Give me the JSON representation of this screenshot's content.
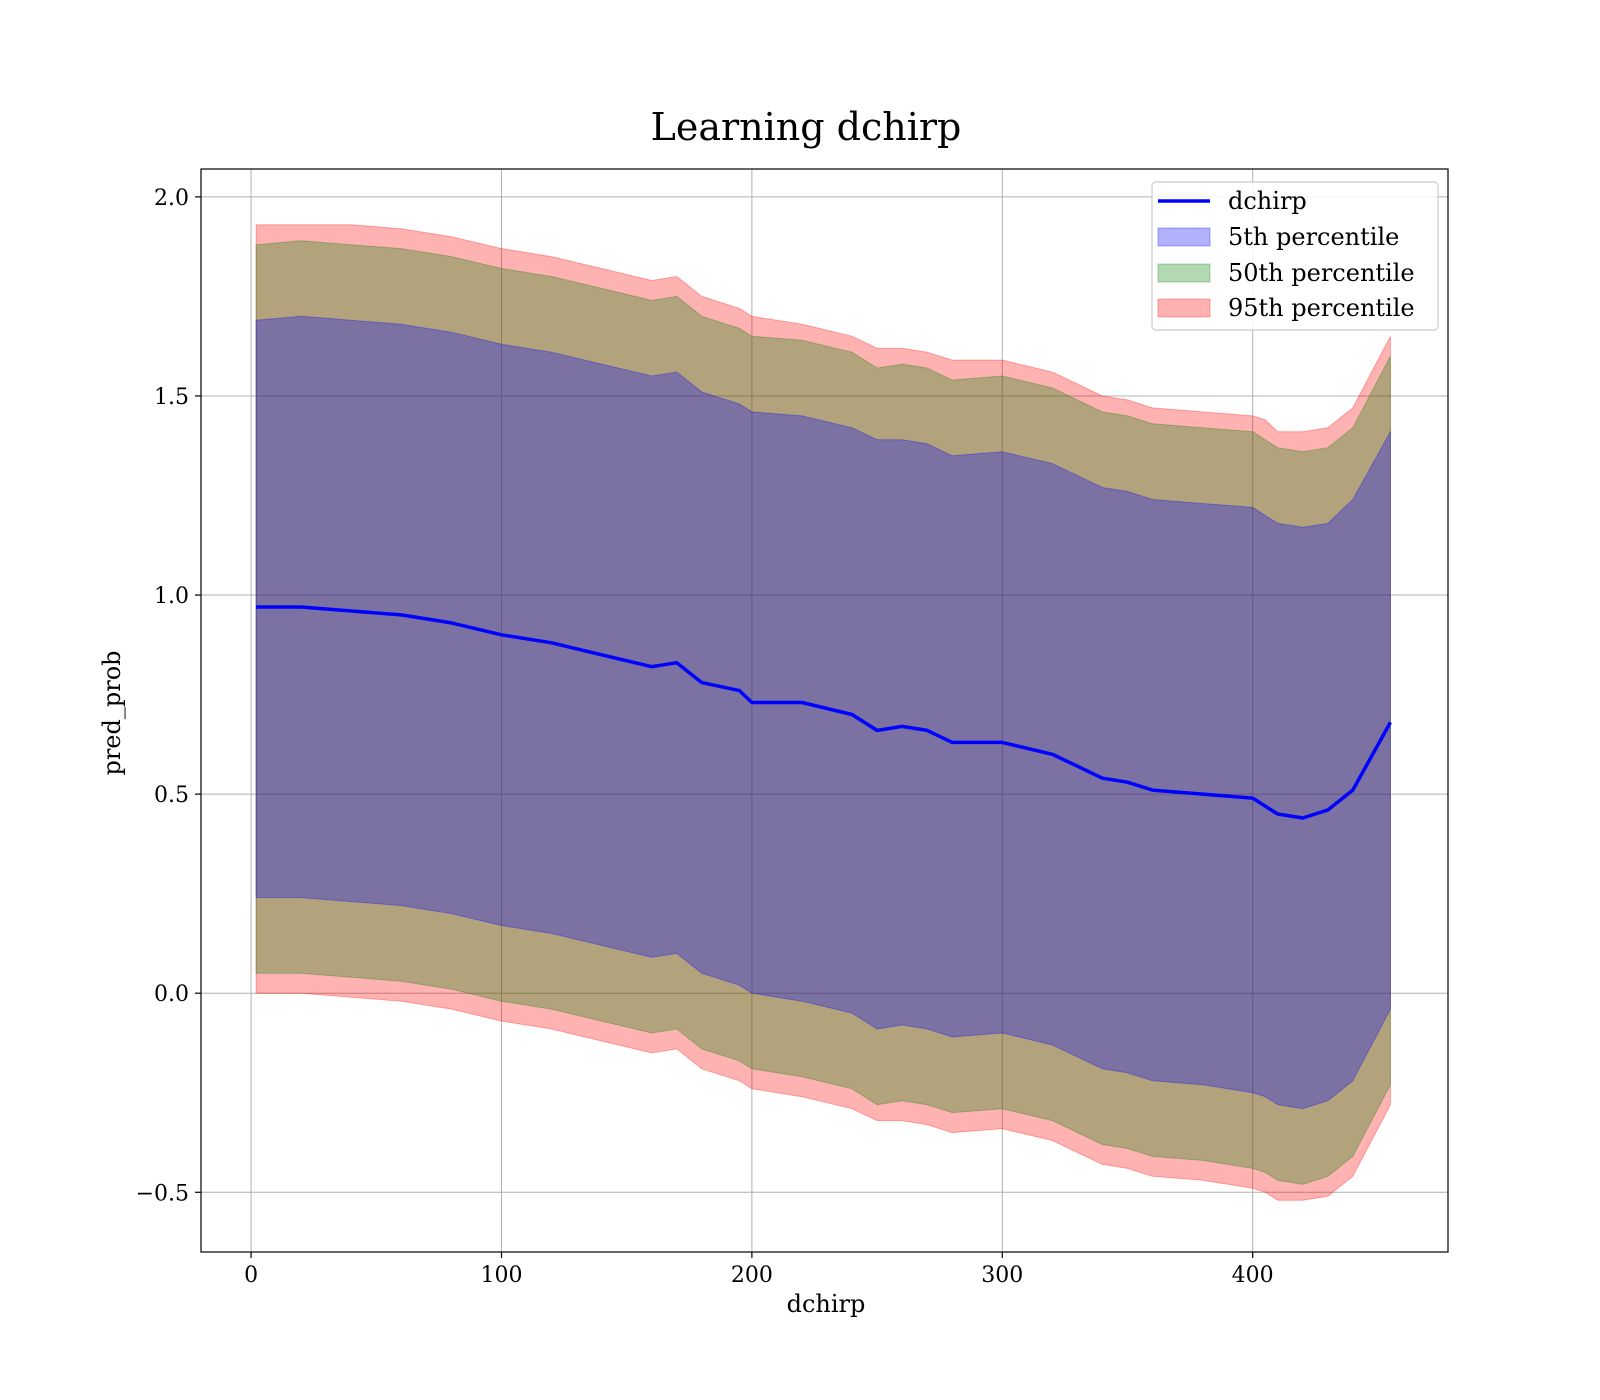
{
  "chart_data": {
    "type": "area",
    "title": "Learning dchirp",
    "xlabel": "dchirp",
    "ylabel": "pred_prob",
    "xlim": [
      -20,
      478
    ],
    "ylim": [
      -0.65,
      2.07
    ],
    "x_ticks": [
      0,
      100,
      200,
      300,
      400
    ],
    "x_tick_labels": [
      "0",
      "100",
      "200",
      "300",
      "400"
    ],
    "y_ticks": [
      -0.5,
      0.0,
      0.5,
      1.0,
      1.5,
      2.0
    ],
    "y_tick_labels": [
      "−0.5",
      "0.0",
      "0.5",
      "1.0",
      "1.5",
      "2.0"
    ],
    "grid": true,
    "legend_position": "top-right",
    "legend": [
      "dchirp",
      "5th percentile",
      "50th percentile",
      "95th percentile"
    ],
    "x": [
      2,
      20,
      40,
      60,
      80,
      100,
      120,
      140,
      160,
      170,
      180,
      195,
      200,
      220,
      240,
      250,
      260,
      270,
      280,
      300,
      320,
      330,
      340,
      350,
      360,
      380,
      400,
      405,
      410,
      420,
      430,
      440,
      455
    ],
    "series": [
      {
        "name": "dchirp",
        "kind": "line",
        "color": "#0000ff",
        "values": [
          0.97,
          0.97,
          0.96,
          0.95,
          0.93,
          0.9,
          0.88,
          0.85,
          0.82,
          0.83,
          0.78,
          0.76,
          0.73,
          0.73,
          0.7,
          0.66,
          0.67,
          0.66,
          0.63,
          0.63,
          0.6,
          0.57,
          0.54,
          0.53,
          0.51,
          0.5,
          0.49,
          0.47,
          0.45,
          0.44,
          0.46,
          0.51,
          0.68
        ]
      },
      {
        "name": "5th percentile",
        "kind": "band",
        "color": "#0000ff",
        "alpha": 0.3,
        "lower": [
          0.24,
          0.24,
          0.23,
          0.22,
          0.2,
          0.17,
          0.15,
          0.12,
          0.09,
          0.1,
          0.05,
          0.02,
          0.0,
          -0.02,
          -0.05,
          -0.09,
          -0.08,
          -0.09,
          -0.11,
          -0.1,
          -0.13,
          -0.16,
          -0.19,
          -0.2,
          -0.22,
          -0.23,
          -0.25,
          -0.26,
          -0.28,
          -0.29,
          -0.27,
          -0.22,
          -0.04
        ],
        "upper": [
          1.69,
          1.7,
          1.69,
          1.68,
          1.66,
          1.63,
          1.61,
          1.58,
          1.55,
          1.56,
          1.51,
          1.48,
          1.46,
          1.45,
          1.42,
          1.39,
          1.39,
          1.38,
          1.35,
          1.36,
          1.33,
          1.3,
          1.27,
          1.26,
          1.24,
          1.23,
          1.22,
          1.2,
          1.18,
          1.17,
          1.18,
          1.24,
          1.41
        ]
      },
      {
        "name": "50th percentile",
        "kind": "band",
        "color": "#008000",
        "alpha": 0.3,
        "lower": [
          0.05,
          0.05,
          0.04,
          0.03,
          0.01,
          -0.02,
          -0.04,
          -0.07,
          -0.1,
          -0.09,
          -0.14,
          -0.17,
          -0.19,
          -0.21,
          -0.24,
          -0.28,
          -0.27,
          -0.28,
          -0.3,
          -0.29,
          -0.32,
          -0.35,
          -0.38,
          -0.39,
          -0.41,
          -0.42,
          -0.44,
          -0.45,
          -0.47,
          -0.48,
          -0.46,
          -0.41,
          -0.23
        ],
        "upper": [
          1.88,
          1.89,
          1.88,
          1.87,
          1.85,
          1.82,
          1.8,
          1.77,
          1.74,
          1.75,
          1.7,
          1.67,
          1.65,
          1.64,
          1.61,
          1.57,
          1.58,
          1.57,
          1.54,
          1.55,
          1.52,
          1.49,
          1.46,
          1.45,
          1.43,
          1.42,
          1.41,
          1.39,
          1.37,
          1.36,
          1.37,
          1.42,
          1.6
        ]
      },
      {
        "name": "95th percentile",
        "kind": "band",
        "color": "#ff0000",
        "alpha": 0.3,
        "lower": [
          0.0,
          0.0,
          -0.01,
          -0.02,
          -0.04,
          -0.07,
          -0.09,
          -0.12,
          -0.15,
          -0.14,
          -0.19,
          -0.22,
          -0.24,
          -0.26,
          -0.29,
          -0.32,
          -0.32,
          -0.33,
          -0.35,
          -0.34,
          -0.37,
          -0.4,
          -0.43,
          -0.44,
          -0.46,
          -0.47,
          -0.49,
          -0.5,
          -0.52,
          -0.52,
          -0.51,
          -0.46,
          -0.28
        ],
        "upper": [
          1.93,
          1.93,
          1.93,
          1.92,
          1.9,
          1.87,
          1.85,
          1.82,
          1.79,
          1.8,
          1.75,
          1.72,
          1.7,
          1.68,
          1.65,
          1.62,
          1.62,
          1.61,
          1.59,
          1.59,
          1.56,
          1.53,
          1.5,
          1.49,
          1.47,
          1.46,
          1.45,
          1.44,
          1.41,
          1.41,
          1.42,
          1.47,
          1.65
        ]
      }
    ]
  }
}
